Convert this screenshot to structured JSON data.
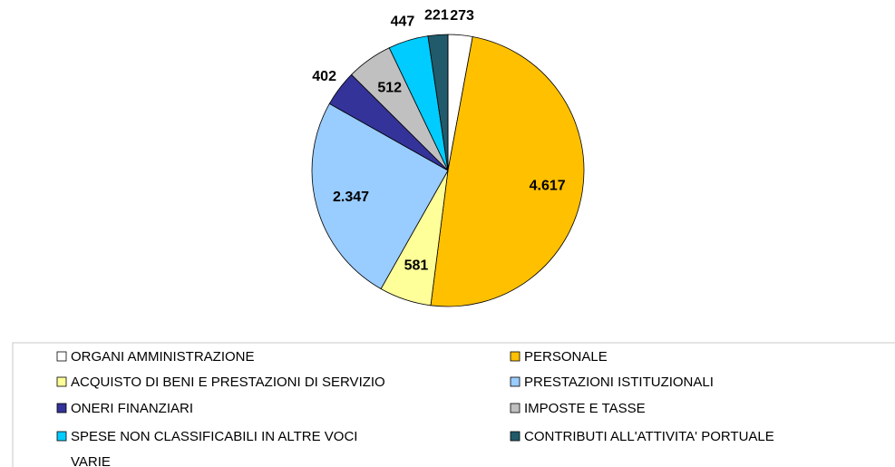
{
  "chart_data": {
    "type": "pie",
    "categories": [
      "ORGANI AMMINISTRAZIONE",
      "PERSONALE",
      "ACQUISTO DI BENI E PRESTAZIONI DI SERVIZIO",
      "PRESTAZIONI ISTITUZIONALI",
      "ONERI FINANZIARI",
      "IMPOSTE E TASSE",
      "SPESE NON CLASSIFICABILI IN ALTRE VOCI",
      "CONTRIBUTI ALL'ATTIVITA' PORTUALE",
      "VARIE"
    ],
    "values": [
      273,
      4617,
      581,
      2347,
      402,
      512,
      447,
      221,
      0
    ],
    "value_labels": [
      "273",
      "4.617",
      "581",
      "2.347",
      "402",
      "512",
      "447",
      "221",
      null
    ],
    "colors": [
      "#ffffff",
      "#ffc000",
      "#ffff99",
      "#99ccff",
      "#333399",
      "#c0c0c0",
      "#00ccff",
      "#215a6a",
      null
    ]
  }
}
